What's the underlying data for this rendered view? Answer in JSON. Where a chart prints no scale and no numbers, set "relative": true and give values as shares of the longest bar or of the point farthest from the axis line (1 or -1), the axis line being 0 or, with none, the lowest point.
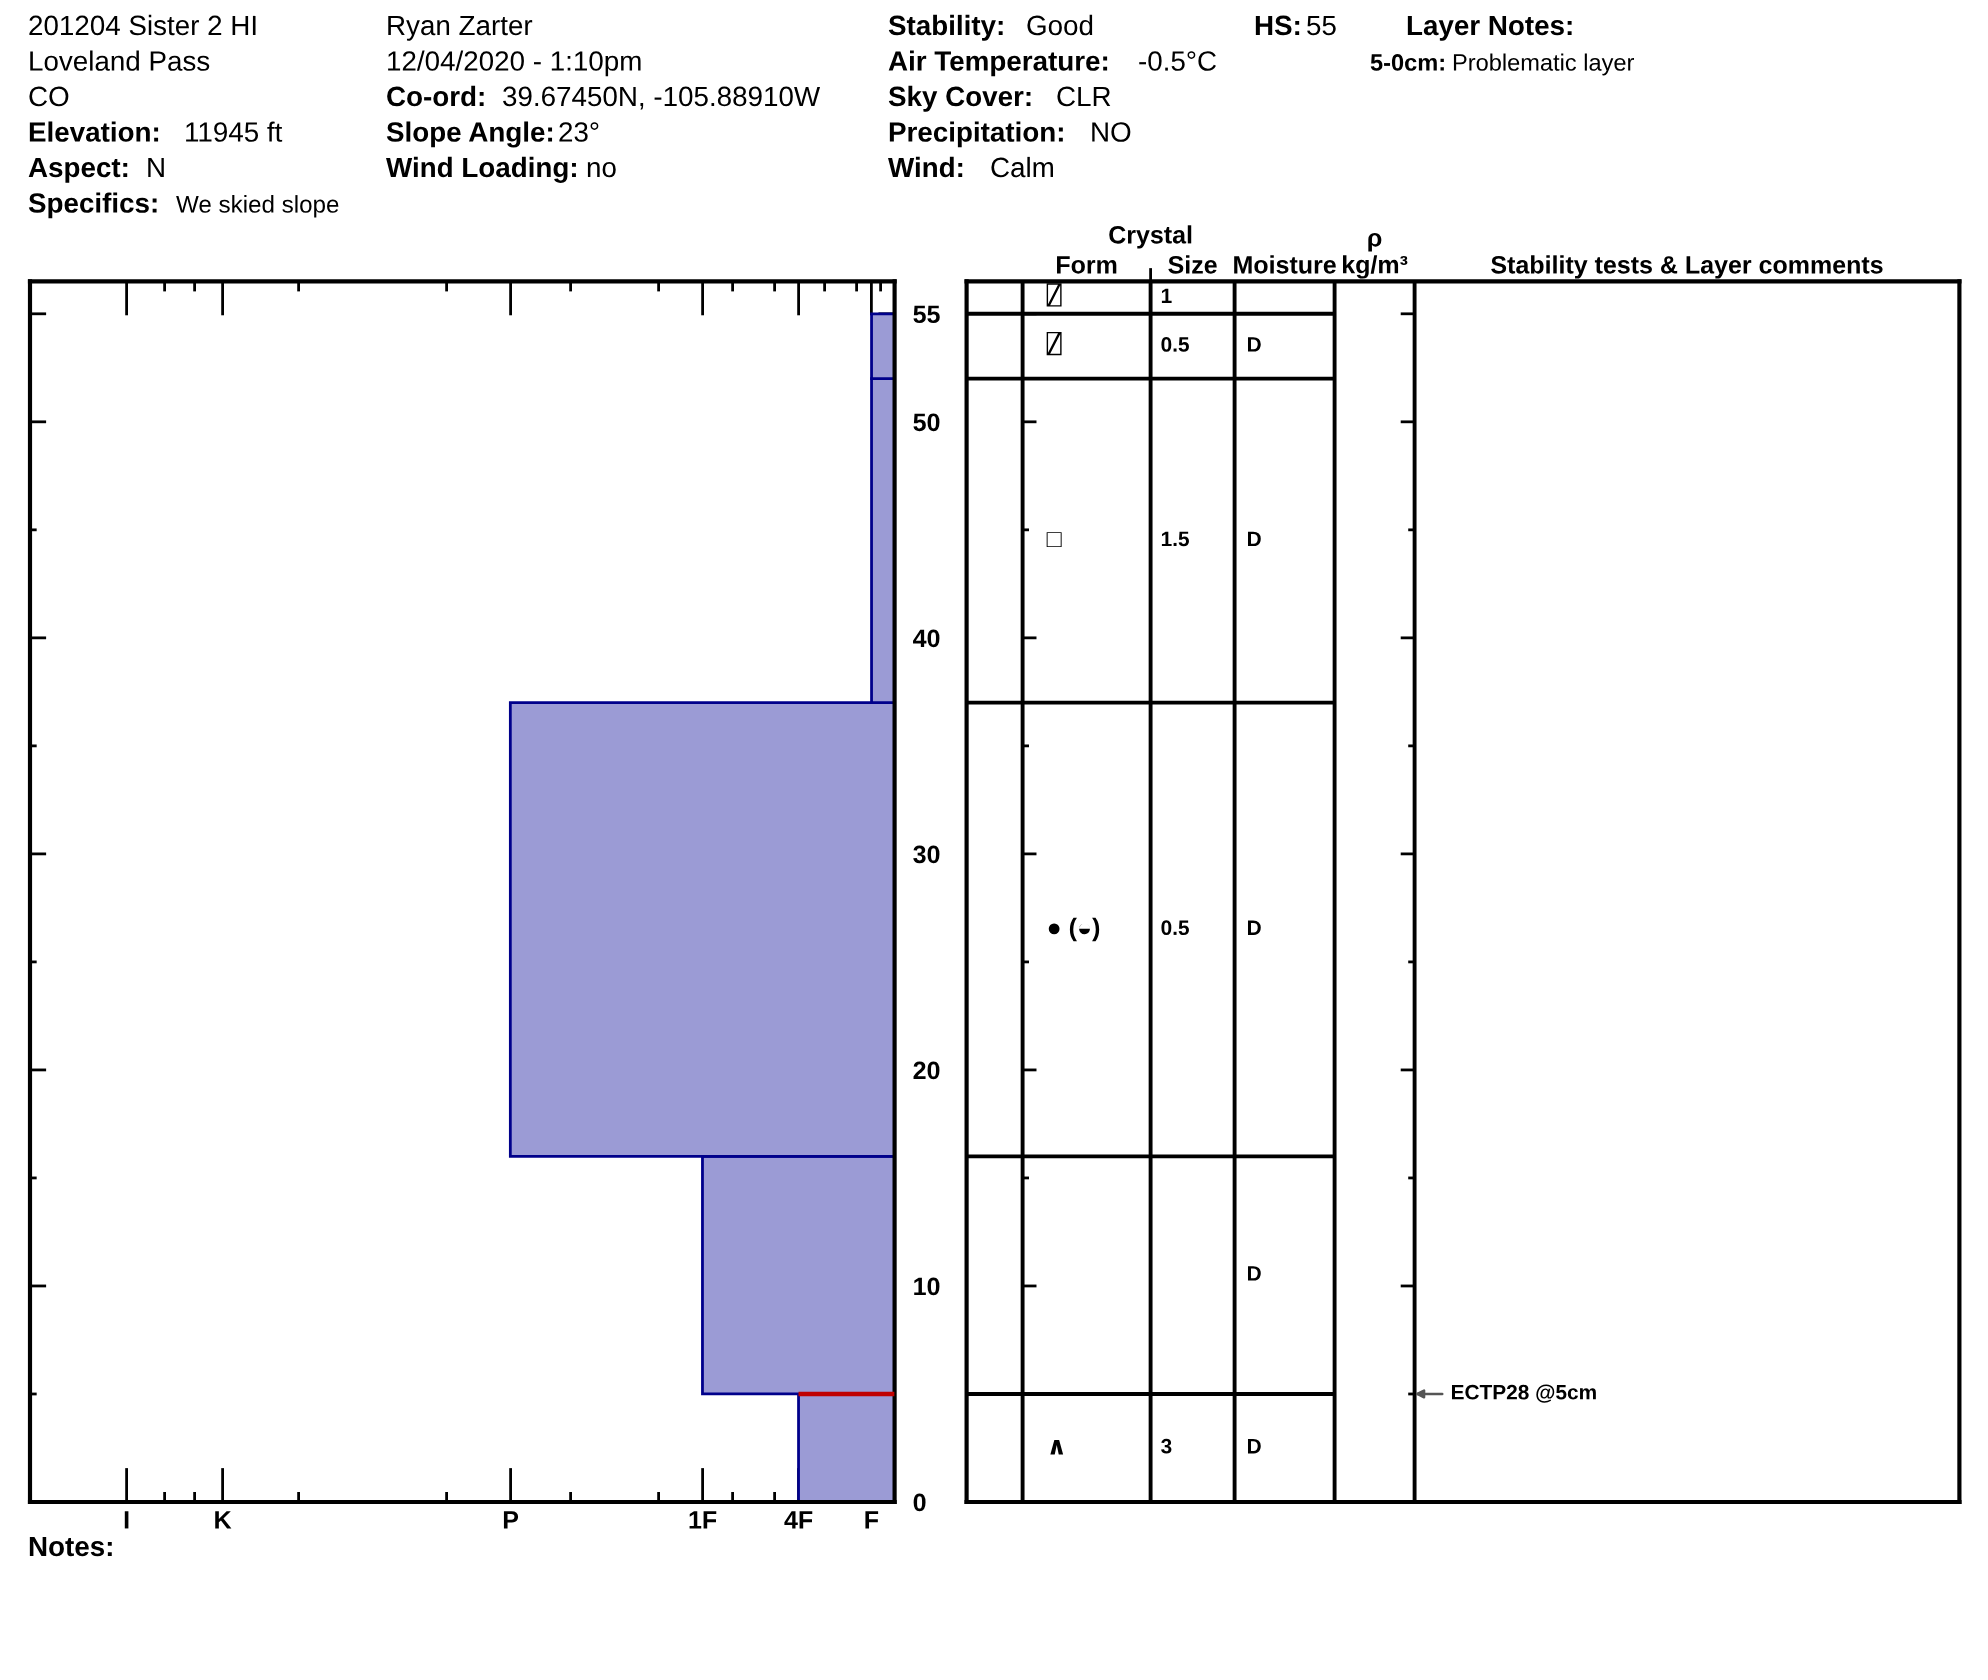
{
  "chart_data": [
    {
      "type": "bar",
      "orientation": "horizontal",
      "relative": true,
      "x": [
        2.5,
        10.5,
        26.5,
        44.5,
        53.5
      ],
      "values": [
        0.25,
        0.5,
        1,
        0.06,
        0.06
      ],
      "color": "#9b9bd5",
      "ylim": [
        0,
        56.5
      ],
      "yticks": [
        0,
        {
          "value": 5,
          "label": null
        },
        10,
        {
          "value": 15,
          "label": null
        },
        20,
        {
          "value": 25,
          "label": null
        },
        30,
        {
          "value": 35,
          "label": null
        },
        40,
        {
          "value": 45,
          "label": null
        },
        50,
        55
      ],
      "tick_labels": "y",
      "ref_lines": [
        {
          "axis": "y",
          "value": 5,
          "color": "#c00000"
        }
      ],
      "annotations": [
        "I",
        "K",
        "P",
        "1F",
        "4F",
        "F",
        "201204 Sister 2 HI",
        "Loveland Pass",
        "CO",
        "Elevation:",
        "11945 ft",
        "Aspect:",
        "N",
        "Specifics:",
        "We skied slope",
        "Ryan Zarter",
        "12/04/2020 - 1:10pm",
        "Co-ord:",
        "39.67450N, -105.88910W",
        "Slope Angle:",
        "23°",
        "Wind Loading:",
        "no",
        "Stability:",
        "Good",
        "Air Temperature:",
        "-0.5°C",
        "Sky Cover:",
        "CLR",
        "Precipitation:",
        "NO",
        "Wind:",
        "Calm",
        "HS:",
        "55",
        "Layer Notes:",
        "5-0cm:",
        "Problematic layer",
        "Notes:"
      ]
    },
    {
      "type": "other",
      "categories": [
        null,
        "Form",
        "Size",
        "Moisture",
        "ρ\nkg/m³",
        "Stability tests & Layer comments"
      ],
      "annotations": [
        "Crystal",
        "⍁",
        "1",
        "⍁",
        "0.5",
        "D",
        "□",
        "1.5",
        "D",
        "● (◒)",
        "0.5",
        "D",
        "D",
        "∧",
        "3",
        "D",
        "ECTP28 @5cm"
      ]
    }
  ]
}
